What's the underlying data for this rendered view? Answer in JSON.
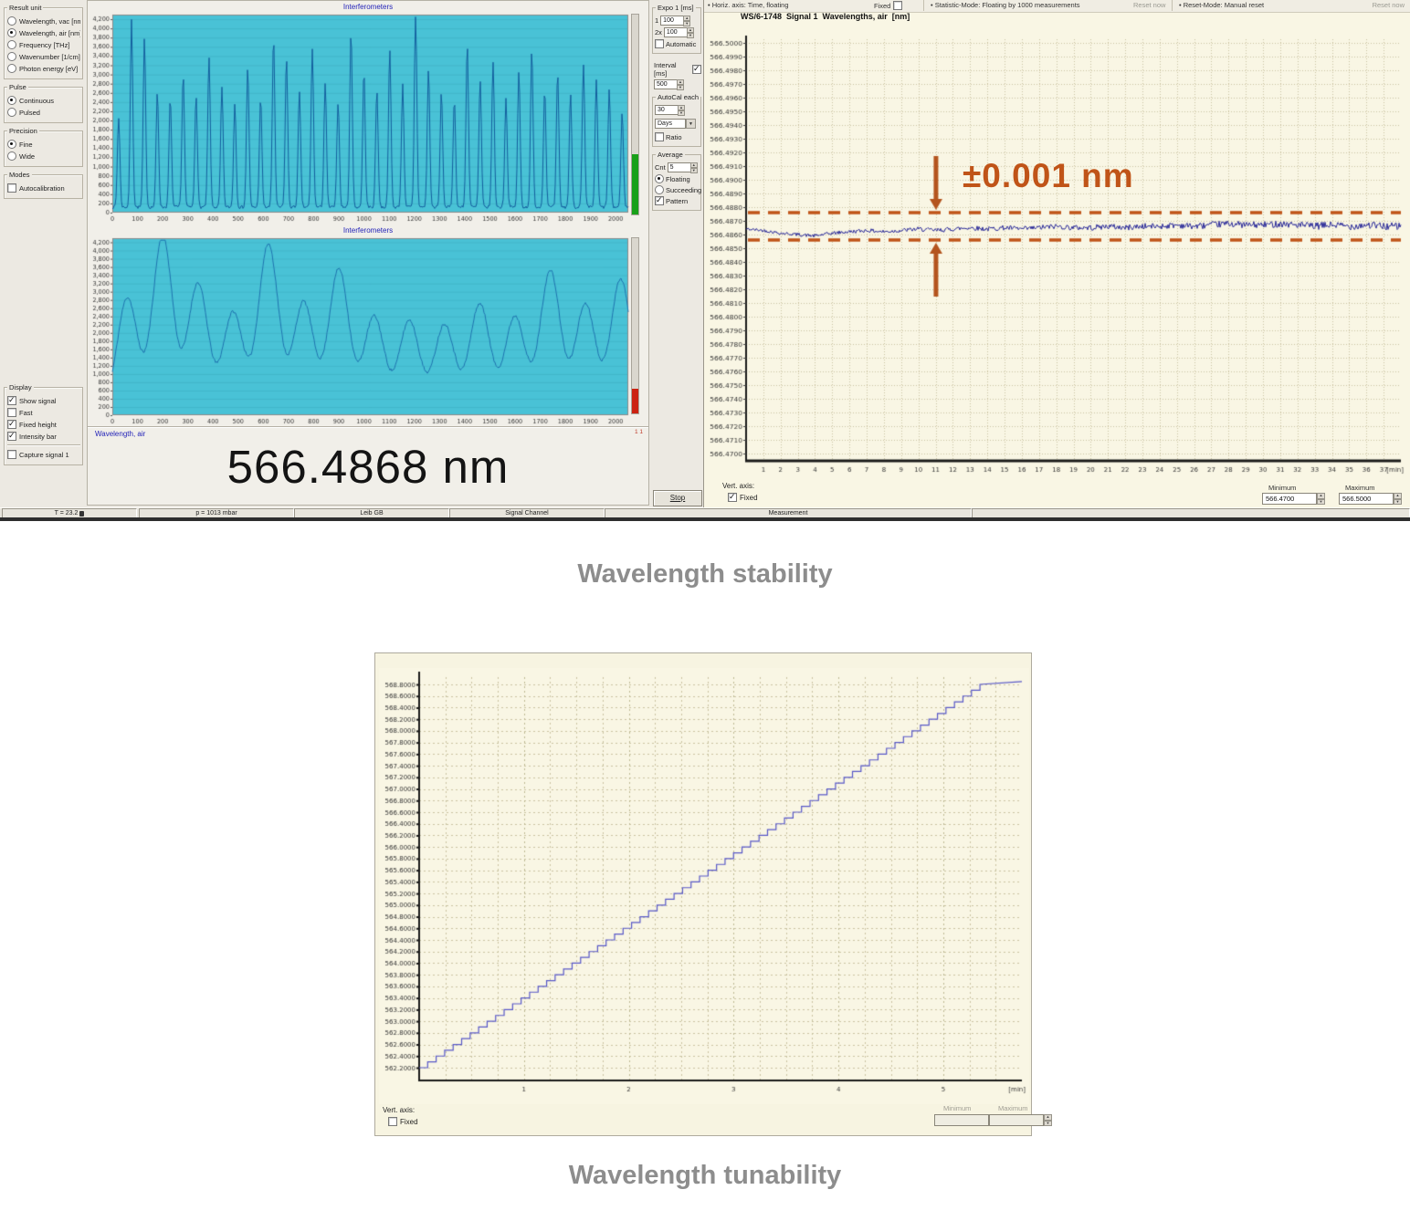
{
  "sidebar": {
    "groups": [
      {
        "id": "result-unit",
        "label": "Result unit",
        "type": "radio",
        "items": [
          {
            "label": "Wavelength, vac [nm]",
            "on": false
          },
          {
            "label": "Wavelength, air [nm]",
            "on": true
          },
          {
            "label": "Frequency [THz]",
            "on": false
          },
          {
            "label": "Wavenumber [1/cm]",
            "on": false
          },
          {
            "label": "Photon energy [eV]",
            "on": false
          }
        ]
      },
      {
        "id": "pulse",
        "label": "Pulse",
        "type": "radio",
        "items": [
          {
            "label": "Continuous",
            "on": true
          },
          {
            "label": "Pulsed",
            "on": false
          }
        ]
      },
      {
        "id": "precision",
        "label": "Precision",
        "type": "radio",
        "items": [
          {
            "label": "Fine",
            "on": true
          },
          {
            "label": "Wide",
            "on": false
          }
        ]
      },
      {
        "id": "modes",
        "label": "Modes",
        "type": "checkbox",
        "items": [
          {
            "label": "Autocalibration",
            "on": false
          }
        ]
      },
      {
        "id": "display",
        "label": "Display",
        "type": "checkbox",
        "gap": true,
        "items": [
          {
            "label": "Show signal",
            "on": true
          },
          {
            "label": "Fast",
            "on": false
          },
          {
            "label": "Fixed height",
            "on": true
          },
          {
            "label": "Intensity bar",
            "on": true
          },
          {
            "label": "Capture signal 1",
            "on": false,
            "divider_before": true
          }
        ]
      }
    ]
  },
  "plots": {
    "title_top": "Interferometers",
    "title_bottom": "Interferometers",
    "reading_label": "Wavelength, air",
    "channel_indicator": "1 1",
    "reading": "566.4868 nm"
  },
  "controls": {
    "expo_label": "Expo 1 [ms]",
    "expo_row1_label": "1",
    "expo_row1_value": "100",
    "expo_row2_label": "2x",
    "expo_row2_value": "100",
    "automatic_label": "Automatic",
    "interval_label": "Interval [ms]",
    "interval_value": "500",
    "autocal_label": "AutoCal each",
    "autocal_value": "30",
    "autocal_unit": "Days",
    "ratio_label": "Ratio",
    "average_label": "Average",
    "cnt_label": "Cnt",
    "cnt_value": "5",
    "floating_label": "Floating",
    "succeeding_label": "Succeeding",
    "pattern_label": "Pattern",
    "stop_label": "Stop"
  },
  "stability": {
    "toolbar": {
      "horiz_axis": "• Horiz. axis: Time, floating",
      "fixed_label": "Fixed",
      "statistic_mode": "• Statistic-Mode: Floating by 1000 measurements",
      "reset_now_1": "Reset now",
      "reset_mode": "• Reset-Mode: Manual reset",
      "reset_now_2": "Reset now"
    },
    "title": "WS/6-1748  Signal 1  Wavelengths, air  [nm]",
    "annotation": "±0.001 nm",
    "vert_axis_label": "Vert. axis:",
    "fixed_label": "Fixed",
    "minimum_label": "Minimum",
    "maximum_label": "Maximum",
    "minimum_value": "566.4700",
    "maximum_value": "566.5000"
  },
  "tunability": {
    "vert_axis_label": "Vert. axis:",
    "fixed_label": "Fixed",
    "minimum_label": "Minimum",
    "maximum_label": "Maximum"
  },
  "statusbar": {
    "cells": [
      "T = 23.2",
      "p = 1013 mbar",
      "Leib GB",
      "Signal Channel",
      "Measurement"
    ]
  },
  "captions": {
    "stability": "Wavelength stability",
    "tunability": "Wavelength tunability"
  },
  "colors": {
    "plot_cyan": "#49c2d6",
    "interf_trace_1": "#135e9e",
    "interf_trace_2": "#1f74b0",
    "stability_trace": "#2a2a99",
    "annotation_orange": "#c05418",
    "grid_dot": "#c9c4a2",
    "axis_black": "#1a1a1a",
    "cream": "#f9f6e4",
    "staircase_blue": "#5858c8",
    "intensity_green": "#18a018",
    "intensity_red": "#cc2211"
  },
  "chart_data": [
    {
      "id": "interferometer-top",
      "type": "line",
      "title": "Interferometers",
      "xlim": [
        0,
        2050
      ],
      "ylim": [
        0,
        4300
      ],
      "x_tick_step": 100,
      "x_tick_max": 2000,
      "y_tick_step": 200,
      "y_tick_max": 4200,
      "baseline": 120,
      "peak_center_start": 25,
      "peak_spacing": 51.3,
      "peak_sigma": 7,
      "peak_heights": [
        1950,
        4050,
        3650,
        2500,
        2350,
        2900,
        2450,
        3250,
        2600,
        2250,
        3050,
        2350,
        3700,
        3250,
        2500,
        3450,
        2700,
        2300,
        3850,
        2950,
        2550,
        3400,
        2650,
        4250,
        3000,
        2500,
        2350,
        3550,
        2750,
        3150,
        2350,
        2950,
        3400,
        2550,
        2900,
        2450,
        3100,
        2750,
        2550,
        2050
      ]
    },
    {
      "id": "interferometer-bottom",
      "type": "line",
      "title": "Interferometers",
      "xlim": [
        0,
        2050
      ],
      "ylim": [
        0,
        4300
      ],
      "x_tick_step": 100,
      "x_tick_max": 2000,
      "y_tick_step": 200,
      "y_tick_max": 4200,
      "baseline": 260,
      "peak_center_start": 60,
      "peak_spacing": 140,
      "peak_sigma": 55,
      "peak_heights": [
        2600,
        4100,
        2950,
        2250,
        3900,
        2500,
        3300,
        2150,
        2050,
        1950,
        2450,
        2150,
        3250,
        2450,
        3050
      ]
    },
    {
      "id": "wavelength-stability",
      "type": "line",
      "title": "WS/6-1748 Signal 1 Wavelengths, air [nm]",
      "x_unit": "[min]",
      "xlim": [
        0,
        38
      ],
      "x_tick_max": 37,
      "ylim": [
        566.47,
        566.5
      ],
      "y_tick_step": 0.001,
      "band_upper": 566.4876,
      "band_lower": 566.4856,
      "noise_amp": 0.0004,
      "annotation": "±0.001 nm",
      "minimum": 566.47,
      "maximum": 566.5,
      "points": [
        [
          0,
          566.4864
        ],
        [
          1,
          566.4863
        ],
        [
          2,
          566.4861
        ],
        [
          3,
          566.486
        ],
        [
          4,
          566.4859
        ],
        [
          5,
          566.4861
        ],
        [
          6,
          566.4862
        ],
        [
          7,
          566.4863
        ],
        [
          8,
          566.4862
        ],
        [
          9,
          566.4863
        ],
        [
          10,
          566.4864
        ],
        [
          11,
          566.4863
        ],
        [
          12,
          566.4864
        ],
        [
          13,
          566.4865
        ],
        [
          14,
          566.4864
        ],
        [
          15,
          566.4865
        ],
        [
          16,
          566.4864
        ],
        [
          17,
          566.4865
        ],
        [
          18,
          566.4866
        ],
        [
          19,
          566.4865
        ],
        [
          20,
          566.4865
        ],
        [
          21,
          566.4866
        ],
        [
          22,
          566.4865
        ],
        [
          23,
          566.4866
        ],
        [
          24,
          566.4866
        ],
        [
          25,
          566.4867
        ],
        [
          26,
          566.4866
        ],
        [
          27,
          566.4867
        ],
        [
          28,
          566.4868
        ],
        [
          29,
          566.4867
        ],
        [
          30,
          566.4867
        ],
        [
          31,
          566.4868
        ],
        [
          32,
          566.4867
        ],
        [
          33,
          566.4866
        ],
        [
          34,
          566.4867
        ],
        [
          35,
          566.4866
        ],
        [
          36,
          566.4867
        ],
        [
          37,
          566.4866
        ],
        [
          38,
          566.4866
        ]
      ]
    },
    {
      "id": "wavelength-tunability",
      "type": "line",
      "x_unit": "[min]",
      "xlim": [
        0,
        5.75
      ],
      "x_ticks": [
        1,
        2,
        3,
        4,
        5
      ],
      "y_label_top": 568.8,
      "y_label_bottom": 562.2,
      "y_tick_step": 0.2,
      "stair_start_nm": 562.2,
      "stair_end_nm": 568.85,
      "stair_step_nm": 0.1,
      "stair_end_min": 5.35
    }
  ]
}
